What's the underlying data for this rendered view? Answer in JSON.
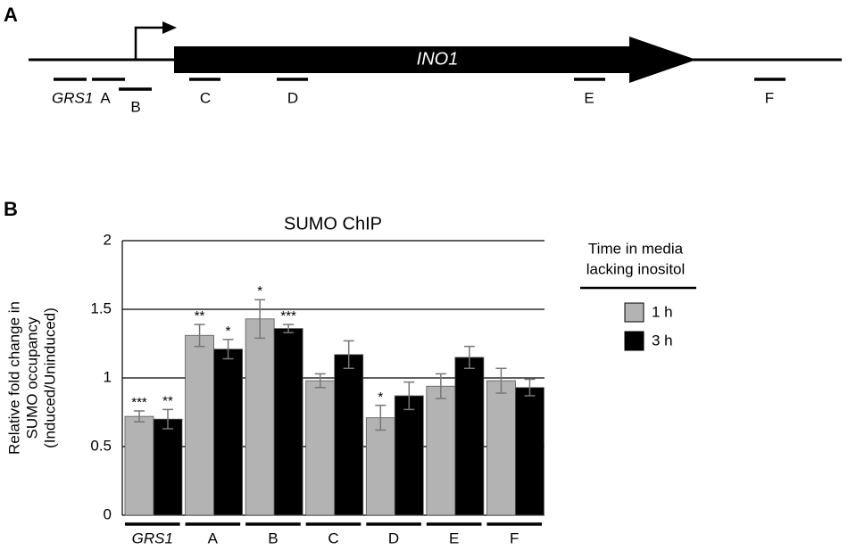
{
  "panel_a": {
    "label": "A",
    "gene": "INO1",
    "regions": [
      "GRS1",
      "A",
      "B",
      "C",
      "D",
      "E",
      "F"
    ]
  },
  "panel_b_label": "B",
  "chart_data": {
    "type": "bar",
    "title": "SUMO ChIP",
    "y_label": [
      "Relative fold change in",
      "SUMO occupancy",
      "(Induced/Uninduced)"
    ],
    "categories": [
      "GRS1",
      "A",
      "B",
      "C",
      "D",
      "E",
      "F"
    ],
    "series": [
      {
        "name": "1 h",
        "color": "#b3b3b3",
        "values": [
          0.72,
          1.31,
          1.43,
          0.98,
          0.71,
          0.94,
          0.98
        ],
        "errors": [
          0.04,
          0.08,
          0.14,
          0.05,
          0.09,
          0.09,
          0.09
        ],
        "stars": [
          "***",
          "**",
          "*",
          null,
          "*",
          null,
          null
        ]
      },
      {
        "name": "3 h",
        "color": "#000000",
        "values": [
          0.7,
          1.21,
          1.36,
          1.17,
          0.87,
          1.15,
          0.93
        ],
        "errors": [
          0.07,
          0.07,
          0.03,
          0.1,
          0.1,
          0.08,
          0.06
        ],
        "stars": [
          "**",
          "*",
          "***",
          null,
          null,
          null,
          null
        ]
      }
    ],
    "legend_title": [
      "Time in media",
      "lacking inositol"
    ],
    "ylim": [
      0,
      2
    ],
    "yticks": [
      0,
      0.5,
      1,
      1.5,
      2
    ],
    "grid": true
  }
}
